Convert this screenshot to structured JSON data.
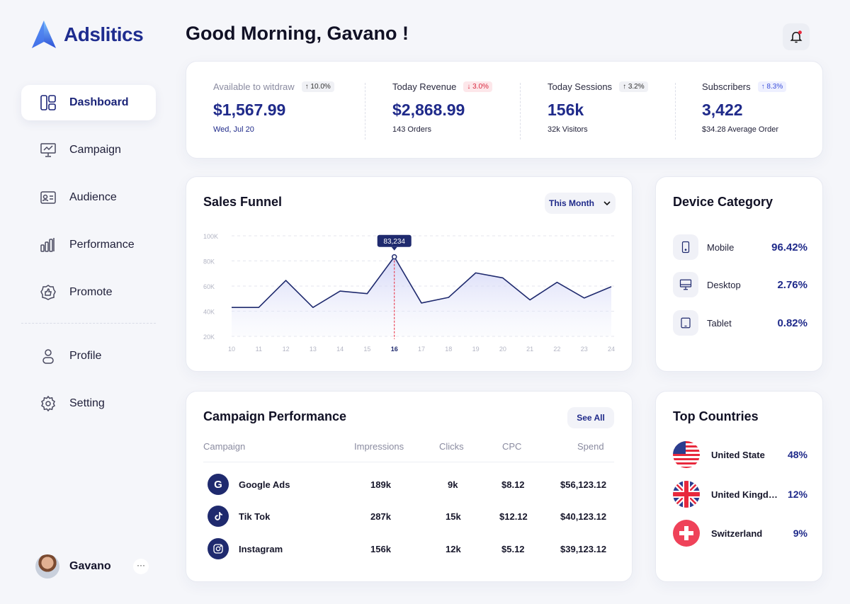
{
  "brand": {
    "name": "Adslitics"
  },
  "sidebar": {
    "items": [
      {
        "label": "Dashboard",
        "icon": "dashboard-icon",
        "active": true
      },
      {
        "label": "Campaign",
        "icon": "presentation-icon"
      },
      {
        "label": "Audience",
        "icon": "id-card-icon"
      },
      {
        "label": "Performance",
        "icon": "bar-chart-icon"
      },
      {
        "label": "Promote",
        "icon": "thumbs-up-icon"
      },
      {
        "label": "Profile",
        "icon": "user-icon"
      },
      {
        "label": "Setting",
        "icon": "gear-icon"
      }
    ],
    "user": {
      "name": "Gavano",
      "more": "···"
    }
  },
  "header": {
    "greeting": "Good Morning, Gavano !"
  },
  "stats": [
    {
      "label": "Available to witdraw",
      "change": "↑ 10.0%",
      "value": "$1,567.99",
      "sub": "Wed, Jul 20"
    },
    {
      "label": "Today Revenue",
      "change": "↓ 3.0%",
      "value": "$2,868.99",
      "sub": "143 Orders"
    },
    {
      "label": "Today Sessions",
      "change": "↑ 3.2%",
      "value": "156k",
      "sub": "32k Visitors"
    },
    {
      "label": "Subscribers",
      "change": "↑ 8.3%",
      "value": "3,422",
      "sub": "$34.28 Average Order"
    }
  ],
  "funnel": {
    "title": "Sales Funnel",
    "period": "This Month",
    "chart_data": {
      "type": "area",
      "x": [
        10,
        11,
        12,
        13,
        14,
        15,
        16,
        17,
        18,
        19,
        20,
        21,
        22,
        23,
        24
      ],
      "values": [
        43000,
        43000,
        64500,
        43000,
        56000,
        54000,
        83234,
        46500,
        51000,
        70500,
        66500,
        49000,
        63000,
        50500,
        59500
      ],
      "x_tick_labels": [
        "10",
        "11",
        "12",
        "13",
        "14",
        "15",
        "16",
        "17",
        "18",
        "19",
        "20",
        "21",
        "22",
        "23",
        "24"
      ],
      "y_tick_labels": [
        "100K",
        "80K",
        "60K",
        "40K",
        "20K"
      ],
      "ylim": [
        20000,
        100000
      ],
      "highlight": {
        "x": 16,
        "label": "83,234"
      },
      "grid": true,
      "color": "#1f2a6e"
    }
  },
  "devices": {
    "title": "Device Category",
    "items": [
      {
        "label": "Mobile",
        "value": "96.42%",
        "icon": "mobile-icon"
      },
      {
        "label": "Desktop",
        "value": "2.76%",
        "icon": "desktop-icon"
      },
      {
        "label": "Tablet",
        "value": "0.82%",
        "icon": "tablet-icon"
      }
    ]
  },
  "campaign": {
    "title": "Campaign Performance",
    "see_all": "See All",
    "columns": [
      "Campaign",
      "Impressions",
      "Clicks",
      "CPC",
      "Spend"
    ],
    "rows": [
      {
        "name": "Google Ads",
        "impressions": "189k",
        "clicks": "9k",
        "cpc": "$8.12",
        "spend": "$56,123.12",
        "icon": "google-icon"
      },
      {
        "name": "Tik Tok",
        "impressions": "287k",
        "clicks": "15k",
        "cpc": "$12.12",
        "spend": "$40,123.12",
        "icon": "tiktok-icon"
      },
      {
        "name": "Instagram",
        "impressions": "156k",
        "clicks": "12k",
        "cpc": "$5.12",
        "spend": "$39,123.12",
        "icon": "instagram-icon"
      }
    ]
  },
  "countries": {
    "title": "Top Countries",
    "items": [
      {
        "name": "United State",
        "value": "48%",
        "flag": "us-flag-icon"
      },
      {
        "name": "United Kingdom",
        "value": "12%",
        "flag": "uk-flag-icon"
      },
      {
        "name": "Switzerland",
        "value": "9%",
        "flag": "swiss-flag-icon"
      }
    ]
  }
}
